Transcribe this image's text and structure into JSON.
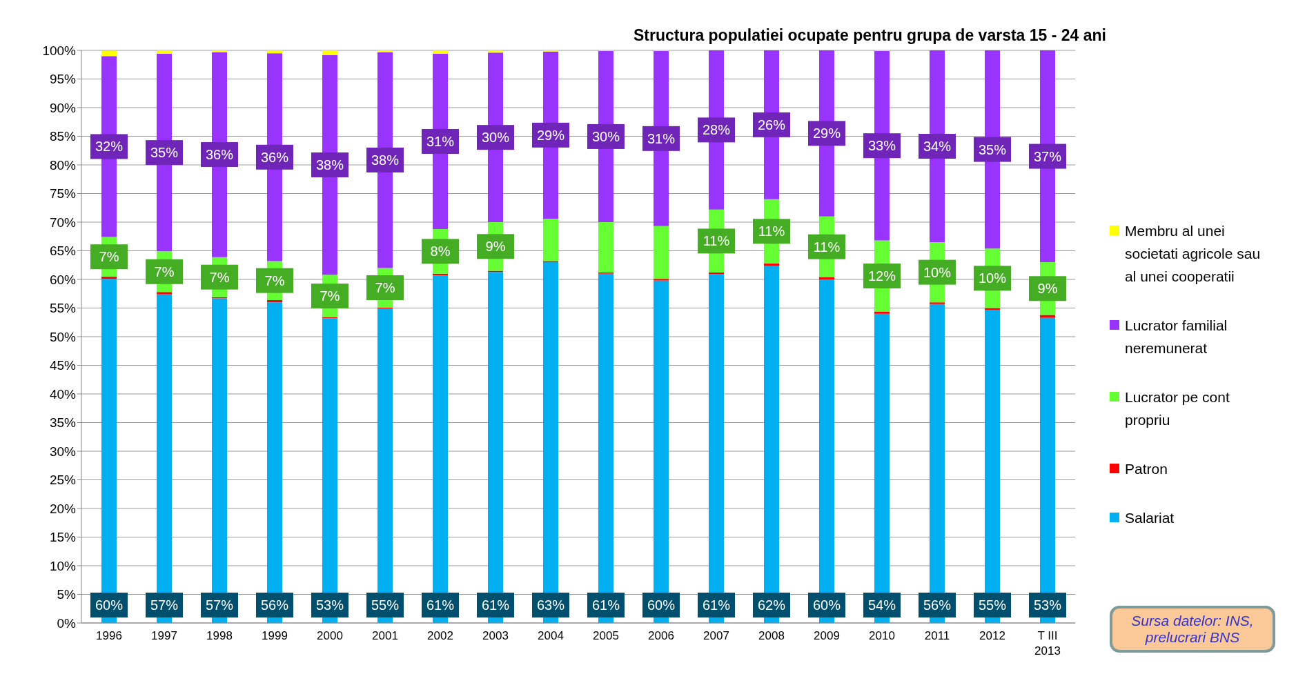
{
  "chart_data": {
    "type": "bar",
    "title": "Structura populatiei ocupate pentru grupa de varsta 15 - 24 ani",
    "stacked": true,
    "grid": "y",
    "legend": "right",
    "categories": [
      "1996",
      "1997",
      "1998",
      "1999",
      "2000",
      "2001",
      "2002",
      "2003",
      "2004",
      "2005",
      "2006",
      "2007",
      "2008",
      "2009",
      "2010",
      "2011",
      "2012",
      "T III 2013"
    ],
    "ylim": [
      0,
      100
    ],
    "yticks": [
      {
        "value": 0,
        "label": "0%"
      },
      {
        "value": 5,
        "label": "5%"
      },
      {
        "value": 10,
        "label": "10%"
      },
      {
        "value": 15,
        "label": "15%"
      },
      {
        "value": 20,
        "label": "20%"
      },
      {
        "value": 25,
        "label": "25%"
      },
      {
        "value": 30,
        "label": "30%"
      },
      {
        "value": 35,
        "label": "35%"
      },
      {
        "value": 40,
        "label": "40%"
      },
      {
        "value": 45,
        "label": "45%"
      },
      {
        "value": 50,
        "label": "50%"
      },
      {
        "value": 55,
        "label": "55%"
      },
      {
        "value": 60,
        "label": "60%"
      },
      {
        "value": 65,
        "label": "65%"
      },
      {
        "value": 70,
        "label": "70%"
      },
      {
        "value": 75,
        "label": "75%"
      },
      {
        "value": 80,
        "label": "80%"
      },
      {
        "value": 85,
        "label": "85%"
      },
      {
        "value": 90,
        "label": "90%"
      },
      {
        "value": 95,
        "label": "95%"
      },
      {
        "value": 100,
        "label": "100%"
      }
    ],
    "series": [
      {
        "name": "Salariat",
        "color": "#00b0f0",
        "values": [
          60.1,
          57.4,
          56.7,
          56.0,
          53.2,
          54.9,
          60.7,
          61.3,
          63.0,
          61.0,
          59.8,
          60.9,
          62.4,
          60.0,
          54.0,
          55.7,
          54.7,
          53.3
        ],
        "value_labels": [
          "60%",
          "57%",
          "57%",
          "56%",
          "53%",
          "55%",
          "61%",
          "61%",
          "63%",
          "61%",
          "60%",
          "61%",
          "62%",
          "60%",
          "54%",
          "56%",
          "55%",
          "53%"
        ]
      },
      {
        "name": "Patron",
        "color": "#ff0000",
        "values": [
          0.4,
          0.4,
          0.2,
          0.4,
          0.2,
          0.2,
          0.3,
          0.2,
          0.2,
          0.2,
          0.3,
          0.3,
          0.4,
          0.4,
          0.4,
          0.3,
          0.3,
          0.5
        ]
      },
      {
        "name": "Lucrator pe cont propriu",
        "color": "#66ff33",
        "values": [
          6.9,
          7.1,
          7.0,
          6.8,
          7.4,
          6.9,
          7.8,
          8.5,
          7.4,
          8.8,
          9.2,
          11.0,
          11.2,
          10.6,
          12.4,
          10.5,
          10.4,
          9.2
        ],
        "value_labels": [
          "7%",
          "7%",
          "7%",
          "7%",
          "7%",
          "7%",
          "8%",
          "9%",
          null,
          null,
          null,
          "11%",
          "11%",
          "11%",
          "12%",
          "10%",
          "10%",
          "9%"
        ]
      },
      {
        "name": "Lucrator familial neremunerat",
        "color": "#9933ff",
        "values": [
          31.6,
          34.5,
          35.8,
          36.3,
          38.4,
          37.7,
          30.6,
          29.6,
          29.2,
          29.9,
          30.6,
          27.8,
          26.0,
          29.0,
          33.1,
          33.5,
          34.6,
          37.0
        ],
        "value_labels": [
          "32%",
          "35%",
          "36%",
          "36%",
          "38%",
          "38%",
          "31%",
          "30%",
          "29%",
          "30%",
          "31%",
          "28%",
          "26%",
          "29%",
          "33%",
          "34%",
          "35%",
          "37%"
        ]
      },
      {
        "name": "Membru al unei societati agricole sau al unei cooperatii",
        "color": "#ffff00",
        "values": [
          0.9,
          0.6,
          0.3,
          0.5,
          0.8,
          0.3,
          0.6,
          0.4,
          0.2,
          0.1,
          0.1,
          0,
          0,
          0,
          0.1,
          0,
          0,
          0
        ]
      }
    ],
    "annotations": [
      "Sursa datelor: INS, prelucrari BNS"
    ]
  }
}
